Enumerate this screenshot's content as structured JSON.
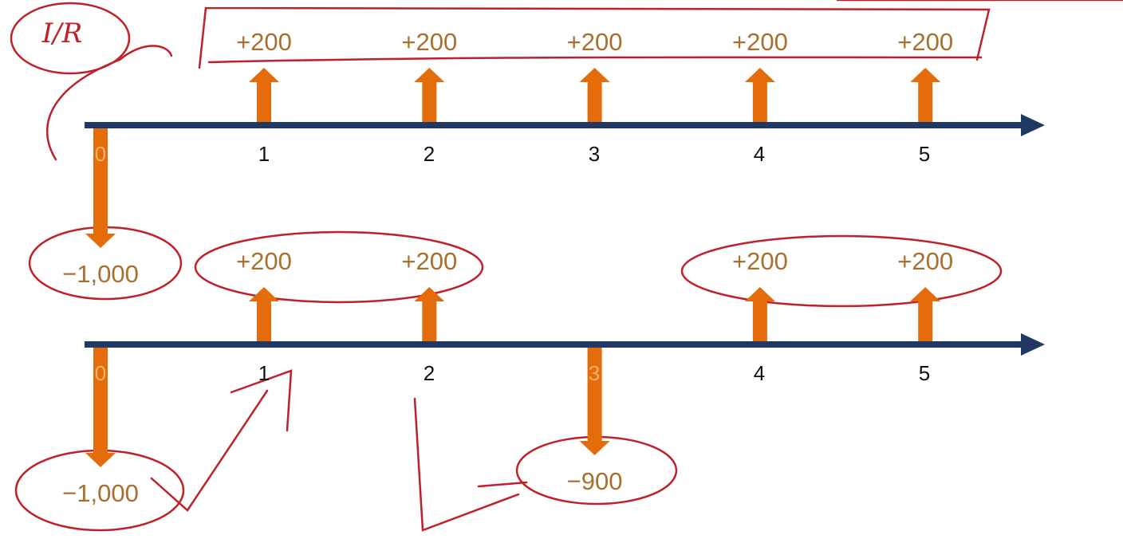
{
  "annotation": "I/R",
  "timelines": [
    {
      "periods": [
        "0",
        "1",
        "2",
        "3",
        "4",
        "5"
      ],
      "flows": [
        {
          "period": "0",
          "value": -1000,
          "label": "−1,000"
        },
        {
          "period": "1",
          "value": 200,
          "label": "+200"
        },
        {
          "period": "2",
          "value": 200,
          "label": "+200"
        },
        {
          "period": "3",
          "value": 200,
          "label": "+200"
        },
        {
          "period": "4",
          "value": 200,
          "label": "+200"
        },
        {
          "period": "5",
          "value": 200,
          "label": "+200"
        }
      ]
    },
    {
      "periods": [
        "0",
        "1",
        "2",
        "3",
        "4",
        "5"
      ],
      "flows": [
        {
          "period": "0",
          "value": -1000,
          "label": "−1,000"
        },
        {
          "period": "1",
          "value": 200,
          "label": "+200"
        },
        {
          "period": "2",
          "value": 200,
          "label": "+200"
        },
        {
          "period": "3",
          "value": -900,
          "label": "−900"
        },
        {
          "period": "4",
          "value": 200,
          "label": "+200"
        },
        {
          "period": "5",
          "value": 200,
          "label": "+200"
        }
      ]
    }
  ]
}
